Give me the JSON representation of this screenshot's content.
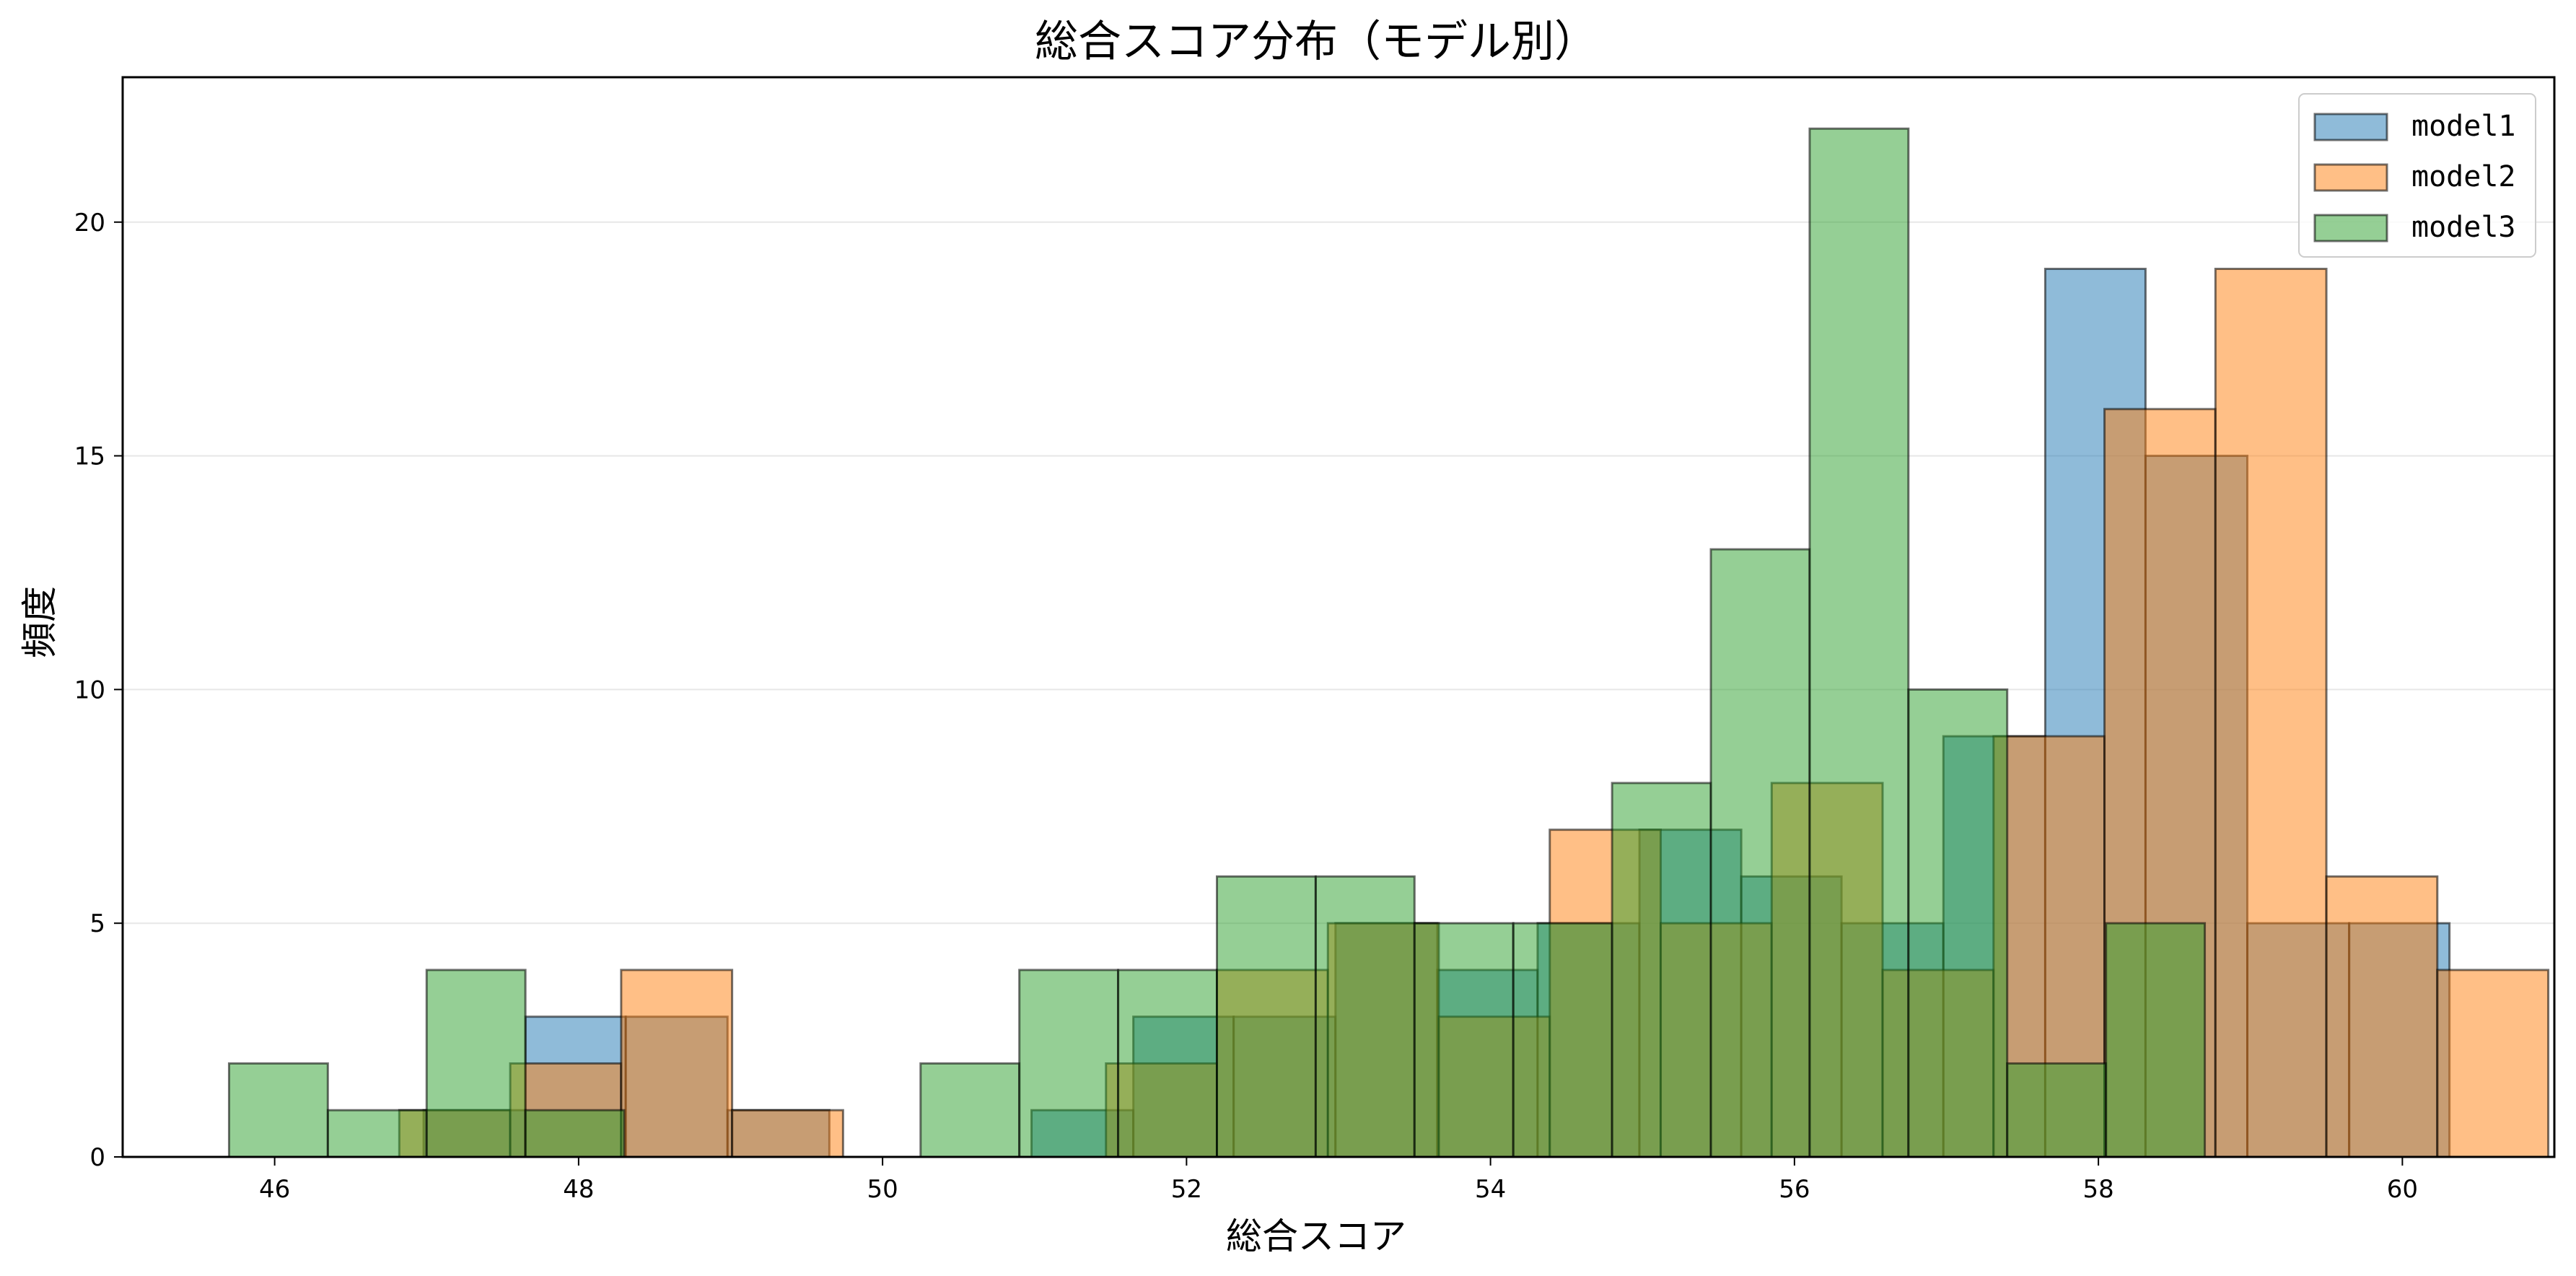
{
  "chart_data": {
    "type": "histogram",
    "title": "総合スコア分布（モデル別）",
    "xlabel": "総合スコア",
    "ylabel": "頻度",
    "xlim": [
      45.0,
      61.0
    ],
    "ylim": [
      0,
      23.1
    ],
    "xticks": [
      46,
      48,
      50,
      52,
      54,
      56,
      58,
      60
    ],
    "yticks": [
      0,
      5,
      10,
      15,
      20
    ],
    "grid": "y",
    "legend_position": "top-right",
    "series": [
      {
        "name": "model1",
        "color": "#1f77b4",
        "bins": [
          {
            "x0": 46.98,
            "x1": 47.65,
            "count": 1
          },
          {
            "x0": 47.65,
            "x1": 48.31,
            "count": 3
          },
          {
            "x0": 48.31,
            "x1": 48.98,
            "count": 3
          },
          {
            "x0": 48.98,
            "x1": 49.65,
            "count": 1
          },
          {
            "x0": 50.98,
            "x1": 51.65,
            "count": 1
          },
          {
            "x0": 51.65,
            "x1": 52.31,
            "count": 3
          },
          {
            "x0": 52.31,
            "x1": 52.98,
            "count": 3
          },
          {
            "x0": 52.98,
            "x1": 53.65,
            "count": 5
          },
          {
            "x0": 53.65,
            "x1": 54.31,
            "count": 4
          },
          {
            "x0": 54.31,
            "x1": 54.98,
            "count": 5
          },
          {
            "x0": 54.98,
            "x1": 55.65,
            "count": 7
          },
          {
            "x0": 55.65,
            "x1": 56.31,
            "count": 6
          },
          {
            "x0": 56.31,
            "x1": 56.98,
            "count": 5
          },
          {
            "x0": 56.98,
            "x1": 57.65,
            "count": 9
          },
          {
            "x0": 57.65,
            "x1": 58.31,
            "count": 19
          },
          {
            "x0": 58.31,
            "x1": 58.98,
            "count": 15
          },
          {
            "x0": 58.98,
            "x1": 59.65,
            "count": 5
          },
          {
            "x0": 59.65,
            "x1": 60.31,
            "count": 5
          }
        ]
      },
      {
        "name": "model2",
        "color": "#ff7f0e",
        "bins": [
          {
            "x0": 46.82,
            "x1": 47.55,
            "count": 1
          },
          {
            "x0": 47.55,
            "x1": 48.28,
            "count": 2
          },
          {
            "x0": 48.28,
            "x1": 49.01,
            "count": 4
          },
          {
            "x0": 49.01,
            "x1": 49.74,
            "count": 1
          },
          {
            "x0": 51.47,
            "x1": 52.2,
            "count": 2
          },
          {
            "x0": 52.2,
            "x1": 52.93,
            "count": 4
          },
          {
            "x0": 52.93,
            "x1": 53.66,
            "count": 5
          },
          {
            "x0": 53.66,
            "x1": 54.39,
            "count": 3
          },
          {
            "x0": 54.39,
            "x1": 55.12,
            "count": 7
          },
          {
            "x0": 55.12,
            "x1": 55.85,
            "count": 5
          },
          {
            "x0": 55.85,
            "x1": 56.58,
            "count": 8
          },
          {
            "x0": 56.58,
            "x1": 57.31,
            "count": 4
          },
          {
            "x0": 57.31,
            "x1": 58.04,
            "count": 9
          },
          {
            "x0": 58.04,
            "x1": 58.77,
            "count": 16
          },
          {
            "x0": 58.77,
            "x1": 59.5,
            "count": 19
          },
          {
            "x0": 59.5,
            "x1": 60.23,
            "count": 6
          },
          {
            "x0": 60.23,
            "x1": 60.96,
            "count": 4
          }
        ]
      },
      {
        "name": "model3",
        "color": "#2ca02c",
        "bins": [
          {
            "x0": 45.7,
            "x1": 46.35,
            "count": 2
          },
          {
            "x0": 46.35,
            "x1": 47.0,
            "count": 1
          },
          {
            "x0": 47.0,
            "x1": 47.65,
            "count": 4
          },
          {
            "x0": 47.65,
            "x1": 48.3,
            "count": 1
          },
          {
            "x0": 50.25,
            "x1": 50.9,
            "count": 2
          },
          {
            "x0": 50.9,
            "x1": 51.55,
            "count": 4
          },
          {
            "x0": 51.55,
            "x1": 52.2,
            "count": 4
          },
          {
            "x0": 52.2,
            "x1": 52.85,
            "count": 6
          },
          {
            "x0": 52.85,
            "x1": 53.5,
            "count": 6
          },
          {
            "x0": 53.5,
            "x1": 54.15,
            "count": 5
          },
          {
            "x0": 54.15,
            "x1": 54.8,
            "count": 5
          },
          {
            "x0": 54.8,
            "x1": 55.45,
            "count": 8
          },
          {
            "x0": 55.45,
            "x1": 56.1,
            "count": 13
          },
          {
            "x0": 56.1,
            "x1": 56.75,
            "count": 22
          },
          {
            "x0": 56.75,
            "x1": 57.4,
            "count": 10
          },
          {
            "x0": 57.4,
            "x1": 58.05,
            "count": 2
          },
          {
            "x0": 58.05,
            "x1": 58.7,
            "count": 5
          }
        ]
      }
    ]
  }
}
